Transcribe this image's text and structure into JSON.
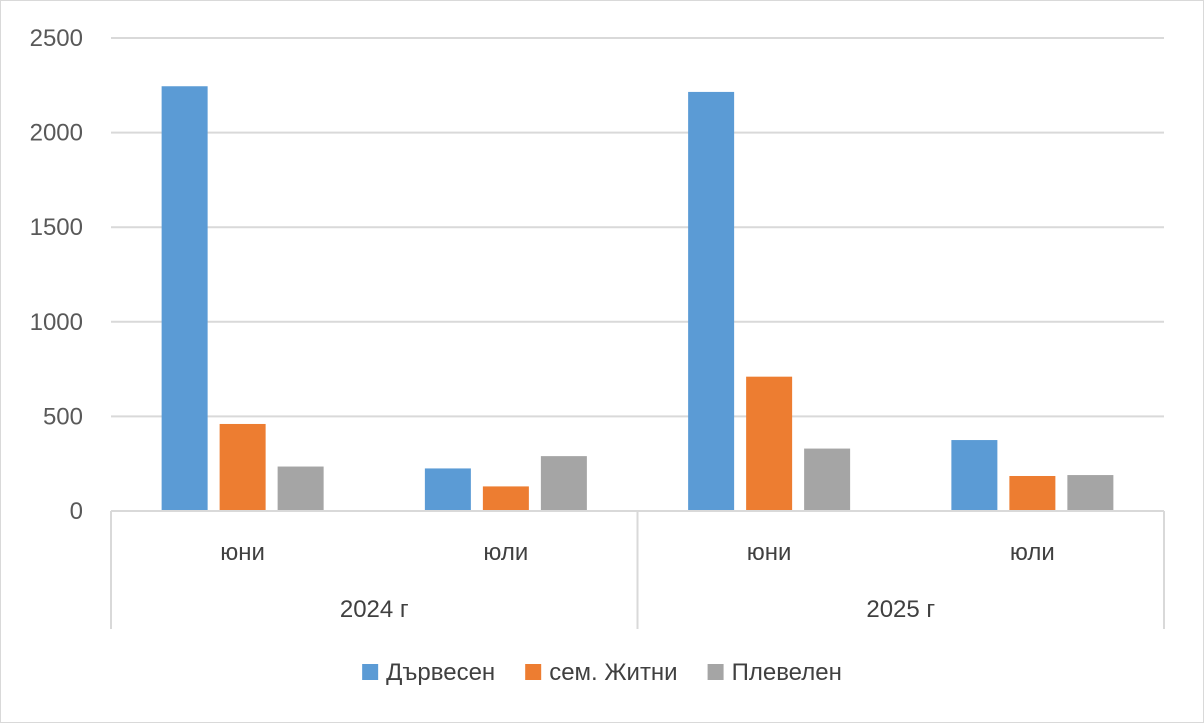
{
  "chart_data": {
    "type": "bar",
    "title": "",
    "xlabel": "",
    "ylabel": "",
    "ylim": [
      0,
      2500
    ],
    "yticks": [
      0,
      500,
      1000,
      1500,
      2000,
      2500
    ],
    "grid": true,
    "legend_position": "bottom",
    "groups": [
      {
        "label": "2024 г",
        "categories": [
          "юни",
          "юли"
        ]
      },
      {
        "label": "2025 г",
        "categories": [
          "юни",
          "юли"
        ]
      }
    ],
    "series": [
      {
        "name": "Дървесен",
        "color": "#5B9BD5",
        "values": [
          2245,
          225,
          2215,
          375
        ]
      },
      {
        "name": "сем. Житни",
        "color": "#ED7D31",
        "values": [
          460,
          130,
          710,
          185
        ]
      },
      {
        "name": "Плевелен",
        "color": "#A5A5A5",
        "values": [
          235,
          290,
          330,
          190
        ]
      }
    ]
  }
}
